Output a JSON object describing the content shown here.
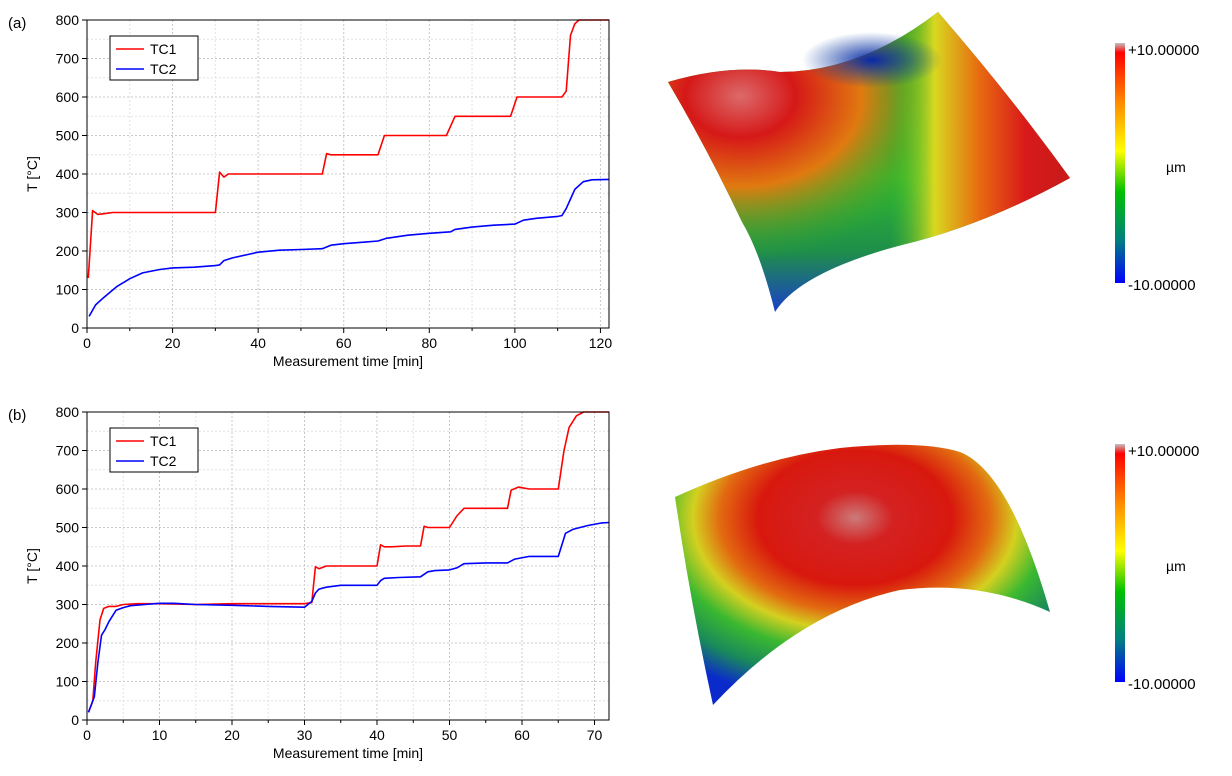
{
  "panels": [
    {
      "label": "(a)",
      "colorbar": {
        "max_label": "+10.00000",
        "min_label": "-10.00000",
        "unit": "µm"
      }
    },
    {
      "label": "(b)",
      "colorbar": {
        "max_label": "+10.00000",
        "min_label": "-10.00000",
        "unit": "µm"
      }
    }
  ],
  "colors": {
    "TC1": "#ff0000",
    "TC2": "#0000ff",
    "grid": "#c8c8c8"
  },
  "chart_data": [
    {
      "type": "line",
      "title": "",
      "xlabel": "Measurement time [min]",
      "ylabel": "T [°C]",
      "xlim": [
        0,
        122
      ],
      "ylim": [
        0,
        800
      ],
      "xticks": [
        0,
        20,
        40,
        60,
        80,
        100,
        120
      ],
      "yticks": [
        0,
        100,
        200,
        300,
        400,
        500,
        600,
        700,
        800
      ],
      "grid": true,
      "legend_position": "top-left",
      "series": [
        {
          "name": "TC1",
          "color": "#ff0000",
          "x": [
            0.3,
            1.3,
            2.5,
            4,
            6,
            10,
            20,
            30,
            31,
            32,
            33,
            34,
            40,
            50,
            55,
            56,
            57,
            60,
            65,
            68,
            69.5,
            75,
            80,
            84,
            86,
            90,
            95,
            99,
            100.5,
            105,
            110,
            111,
            112,
            113,
            114,
            115,
            117,
            122
          ],
          "y": [
            130,
            305,
            295,
            297,
            300,
            300,
            300,
            300,
            405,
            392,
            400,
            400,
            400,
            400,
            400,
            453,
            450,
            450,
            450,
            450,
            500,
            500,
            500,
            500,
            550,
            550,
            550,
            550,
            600,
            600,
            600,
            600,
            615,
            760,
            790,
            800,
            800,
            800
          ]
        },
        {
          "name": "TC2",
          "color": "#0000ff",
          "x": [
            0.5,
            2,
            4,
            7,
            10,
            13,
            17,
            20,
            25,
            30,
            31,
            32,
            34,
            38,
            40,
            45,
            50,
            55,
            57,
            60,
            65,
            68,
            70,
            75,
            80,
            85,
            86,
            90,
            95,
            100,
            102,
            105,
            110,
            111,
            112,
            113,
            114,
            116,
            118,
            122
          ],
          "y": [
            30,
            60,
            80,
            108,
            128,
            143,
            152,
            156,
            158,
            162,
            164,
            175,
            182,
            192,
            197,
            202,
            204,
            206,
            215,
            219,
            223,
            226,
            233,
            241,
            246,
            250,
            256,
            262,
            267,
            270,
            280,
            285,
            290,
            292,
            310,
            335,
            360,
            380,
            385,
            386
          ]
        }
      ]
    },
    {
      "type": "line",
      "title": "",
      "xlabel": "Measurement time [min]",
      "ylabel": "T [°C]",
      "xlim": [
        0,
        72
      ],
      "ylim": [
        0,
        800
      ],
      "xticks": [
        0,
        10,
        20,
        30,
        40,
        50,
        60,
        70
      ],
      "yticks": [
        0,
        100,
        200,
        300,
        400,
        500,
        600,
        700,
        800
      ],
      "grid": true,
      "legend_position": "top-left",
      "series": [
        {
          "name": "TC1",
          "color": "#ff0000",
          "x": [
            0.2,
            0.8,
            1.2,
            1.8,
            2.3,
            3,
            4,
            5,
            7,
            10,
            15,
            20,
            25,
            30,
            31,
            31.5,
            32,
            33,
            35,
            38,
            40,
            40.5,
            41,
            42,
            44,
            46,
            46.5,
            47,
            48,
            50,
            51,
            52,
            55,
            58,
            58.5,
            59.5,
            61,
            63,
            65,
            65.8,
            66.5,
            67.5,
            68.5,
            72
          ],
          "y": [
            20,
            50,
            150,
            260,
            290,
            295,
            295,
            300,
            302,
            302,
            300,
            302,
            302,
            302,
            305,
            398,
            393,
            400,
            400,
            400,
            400,
            455,
            450,
            450,
            452,
            452,
            503,
            500,
            500,
            500,
            530,
            550,
            550,
            550,
            597,
            605,
            600,
            600,
            600,
            700,
            760,
            790,
            800,
            800
          ]
        },
        {
          "name": "TC2",
          "color": "#0000ff",
          "x": [
            0.2,
            1,
            1.5,
            2,
            2.5,
            3,
            4,
            5,
            6,
            8,
            10,
            12,
            15,
            20,
            25,
            30,
            31,
            31.5,
            32,
            33,
            35,
            38,
            40,
            40.5,
            41,
            43,
            46,
            47,
            48,
            50,
            51,
            52,
            55,
            58,
            59,
            61,
            65,
            66,
            67,
            69,
            71,
            72
          ],
          "y": [
            20,
            60,
            150,
            220,
            235,
            255,
            285,
            292,
            297,
            300,
            303,
            303,
            300,
            298,
            295,
            293,
            308,
            330,
            340,
            345,
            350,
            350,
            350,
            362,
            368,
            370,
            372,
            385,
            388,
            390,
            395,
            406,
            408,
            408,
            418,
            425,
            425,
            485,
            495,
            505,
            512,
            513
          ]
        }
      ]
    }
  ]
}
